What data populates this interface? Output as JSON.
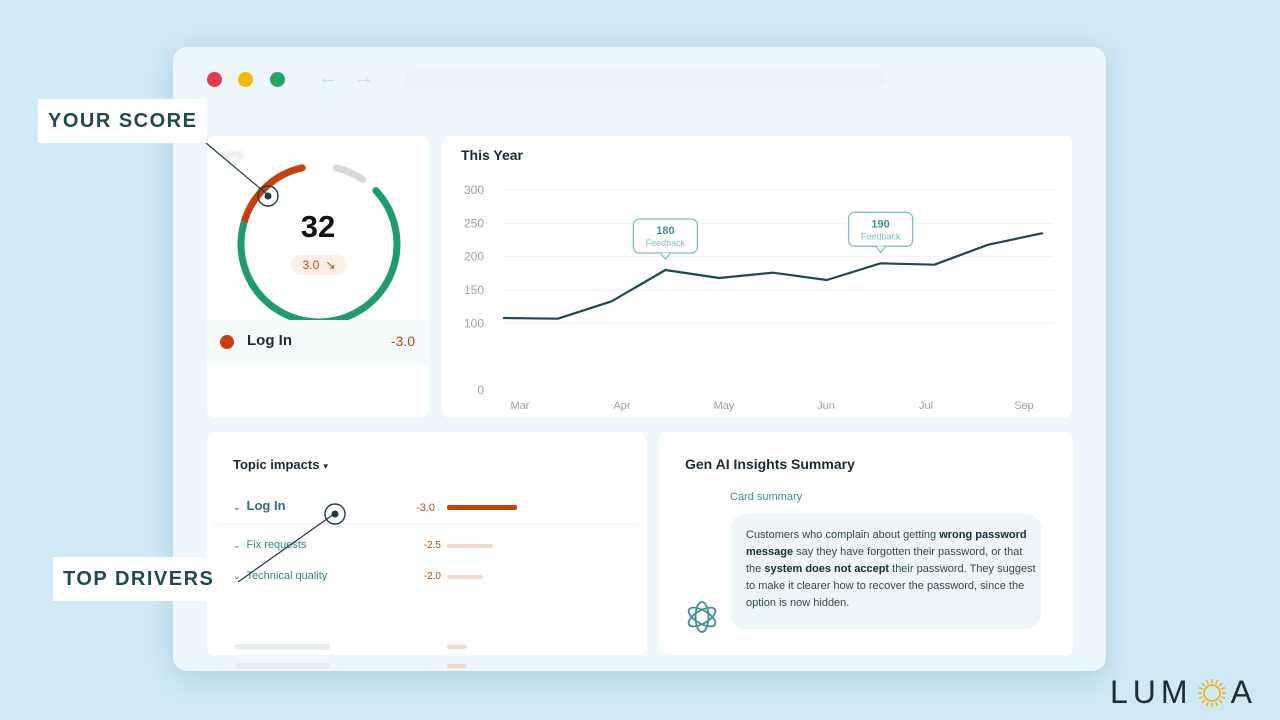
{
  "window": {
    "nav_back": "←",
    "nav_forward": "→"
  },
  "score": {
    "label": "NPS",
    "value": "32",
    "delta": "3.0",
    "delta_icon": "arrow-down-right-icon",
    "gauge": {
      "negative_fraction": 0.17,
      "neutral_fraction": 0.06,
      "positive_fraction": 0.66
    },
    "row": {
      "label": "Log In",
      "value": "-3.0"
    }
  },
  "chart": {
    "title": "This Year",
    "chart_data": {
      "type": "line",
      "title": "This Year",
      "xlabel": "",
      "ylabel": "",
      "ylim": [
        0,
        300
      ],
      "y_ticks": [
        "0",
        "100",
        "150",
        "200",
        "250",
        "300"
      ],
      "x_ticks": [
        "Mar",
        "Apr",
        "May",
        "Jun",
        "Jul",
        "Sep"
      ],
      "grid": true,
      "series": [
        {
          "values": [
            {
              "x": "Mar",
              "y": 108
            },
            {
              "x": "Mar-late",
              "y": 107
            },
            {
              "x": "Apr-early",
              "y": 133
            },
            {
              "x": "Apr",
              "y": 180
            },
            {
              "x": "Apr-late",
              "y": 168
            },
            {
              "x": "May",
              "y": 176
            },
            {
              "x": "Jun",
              "y": 165
            },
            {
              "x": "Jun-late",
              "y": 190
            },
            {
              "x": "Jul",
              "y": 188
            },
            {
              "x": "Jul-late",
              "y": 218
            },
            {
              "x": "Sep",
              "y": 235
            }
          ]
        }
      ],
      "annotations": [
        {
          "value": "180",
          "label": "Feedback",
          "point_index": 3
        },
        {
          "value": "190",
          "label": "Feedback",
          "point_index": 7
        }
      ]
    }
  },
  "topics": {
    "title": "Topic impacts",
    "items": [
      {
        "label": "Log In",
        "value": "-3.0",
        "impact": 3.0
      },
      {
        "label": "Fix requests",
        "value": "-2.5",
        "impact": 2.5
      },
      {
        "label": "Technical quality",
        "value": "-2.0",
        "impact": 2.0
      }
    ]
  },
  "ai": {
    "title": "Gen AI Insights Summary",
    "subtitle": "Card summary",
    "text_parts": {
      "p1": "Customers who complain about getting ",
      "b1": "wrong password message",
      "p2": " say they have forgotten their password, or that the ",
      "b2": "system does not accept",
      "p3": " their password. They suggest to make it clearer how to recover the password, since the option is now hidden."
    },
    "icon": "openai-logo-icon"
  },
  "callouts": {
    "score": "YOUR SCORE",
    "drivers": "TOP DRIVERS"
  },
  "brand": {
    "left": "LUM",
    "right": "A",
    "icon": "sun-icon",
    "color": "#f2b21d"
  },
  "colors": {
    "negative": "#c4420e",
    "positive": "#1f9b6e",
    "neutral": "#d6d9db",
    "line": "#1f4752"
  }
}
